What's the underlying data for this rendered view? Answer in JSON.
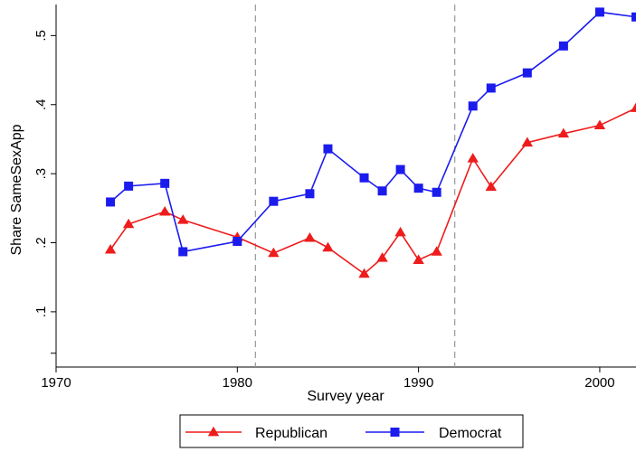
{
  "chart_data": {
    "type": "line",
    "title": "",
    "xlabel": "Survey year",
    "ylabel": "Share SameSexApp",
    "xlim": [
      1970,
      2002
    ],
    "ylim": [
      0.02,
      0.545
    ],
    "x_ticks": [
      1970,
      1980,
      1990,
      2000
    ],
    "x_tick_labels": [
      "1970",
      "1980",
      "1990",
      "2000"
    ],
    "y_ticks": [
      0.1,
      0.2,
      0.3,
      0.4,
      0.5
    ],
    "y_tick_labels": [
      ".1",
      ".2",
      ".3",
      ".4",
      ".5"
    ],
    "y_extra_ticks": [
      0.04
    ],
    "reference_lines_x": [
      1981,
      1992
    ],
    "grid": false,
    "legend_position": "bottom",
    "series": [
      {
        "name": "Republican",
        "color": "#ee1c1c",
        "marker": "triangle",
        "x": [
          1973,
          1974,
          1976,
          1977,
          1980,
          1982,
          1984,
          1985,
          1987,
          1988,
          1989,
          1990,
          1991,
          1993,
          1994,
          1996,
          1998,
          2000,
          2002
        ],
        "y": [
          0.19,
          0.227,
          0.245,
          0.233,
          0.208,
          0.185,
          0.207,
          0.193,
          0.155,
          0.178,
          0.215,
          0.175,
          0.187,
          0.322,
          0.281,
          0.345,
          0.358,
          0.37,
          0.395
        ]
      },
      {
        "name": "Democrat",
        "color": "#1b1bee",
        "marker": "square",
        "x": [
          1973,
          1974,
          1976,
          1977,
          1980,
          1982,
          1984,
          1985,
          1987,
          1988,
          1989,
          1990,
          1991,
          1993,
          1994,
          1996,
          1998,
          2000,
          2002
        ],
        "y": [
          0.259,
          0.282,
          0.286,
          0.187,
          0.202,
          0.26,
          0.271,
          0.336,
          0.294,
          0.275,
          0.306,
          0.279,
          0.273,
          0.398,
          0.424,
          0.446,
          0.485,
          0.534,
          0.527
        ]
      }
    ]
  }
}
